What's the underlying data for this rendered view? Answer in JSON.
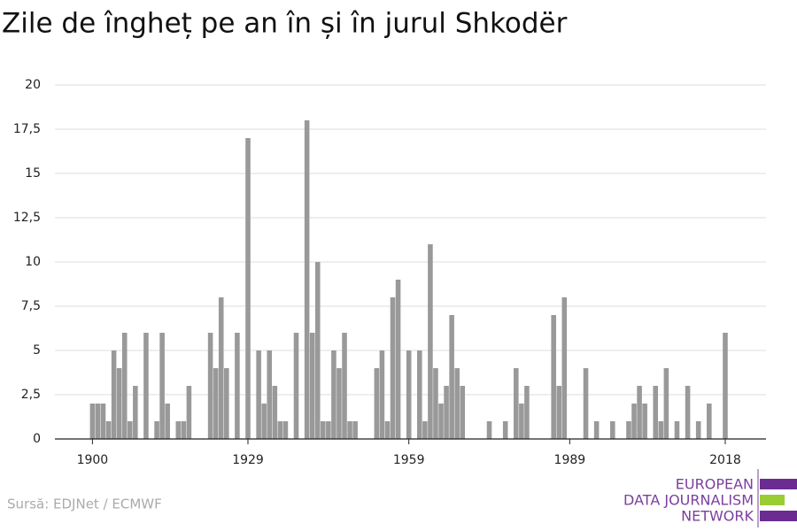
{
  "chart_data": {
    "type": "bar",
    "title": "Zile de îngheț pe an în și în jurul Shkodër",
    "source": "Sursă: EDJNet / ECMWF",
    "logo": [
      "EUROPEAN",
      "DATA JOURNALISM",
      "NETWORK"
    ],
    "color": "#999999",
    "grid": true,
    "x": [
      1900,
      1901,
      1902,
      1903,
      1904,
      1905,
      1906,
      1907,
      1908,
      1909,
      1910,
      1911,
      1912,
      1913,
      1914,
      1915,
      1916,
      1917,
      1918,
      1919,
      1920,
      1921,
      1922,
      1923,
      1924,
      1925,
      1926,
      1927,
      1928,
      1929,
      1930,
      1931,
      1932,
      1933,
      1934,
      1935,
      1936,
      1937,
      1938,
      1939,
      1940,
      1941,
      1942,
      1943,
      1944,
      1945,
      1946,
      1947,
      1948,
      1949,
      1950,
      1951,
      1952,
      1953,
      1954,
      1955,
      1956,
      1957,
      1958,
      1959,
      1960,
      1961,
      1962,
      1963,
      1964,
      1965,
      1966,
      1967,
      1968,
      1969,
      1970,
      1971,
      1972,
      1973,
      1974,
      1975,
      1976,
      1977,
      1978,
      1979,
      1980,
      1981,
      1982,
      1983,
      1984,
      1985,
      1986,
      1987,
      1988,
      1989,
      1990,
      1991,
      1992,
      1993,
      1994,
      1995,
      1996,
      1997,
      1998,
      1999,
      2000,
      2001,
      2002,
      2003,
      2004,
      2005,
      2006,
      2007,
      2008,
      2009,
      2010,
      2011,
      2012,
      2013,
      2014,
      2015,
      2016,
      2017,
      2018
    ],
    "values": [
      2,
      2,
      2,
      1,
      5,
      4,
      6,
      1,
      3,
      0,
      6,
      0,
      1,
      6,
      2,
      0,
      1,
      1,
      3,
      0,
      0,
      0,
      6,
      4,
      8,
      4,
      0,
      6,
      0,
      17,
      0,
      5,
      2,
      5,
      3,
      1,
      1,
      0,
      6,
      0,
      18,
      6,
      10,
      1,
      1,
      5,
      4,
      6,
      1,
      1,
      0,
      0,
      0,
      4,
      5,
      1,
      8,
      9,
      0,
      5,
      0,
      5,
      1,
      11,
      4,
      2,
      3,
      7,
      4,
      3,
      0,
      0,
      0,
      0,
      1,
      0,
      0,
      1,
      0,
      4,
      2,
      3,
      0,
      0,
      0,
      0,
      7,
      3,
      8,
      0,
      0,
      0,
      4,
      0,
      1,
      0,
      0,
      1,
      0,
      0,
      1,
      2,
      3,
      2,
      0,
      3,
      1,
      4,
      0,
      1,
      0,
      3,
      0,
      1,
      0,
      2,
      0,
      0,
      6
    ],
    "xlim": [
      1893,
      2025.6
    ],
    "xticks": [
      1900,
      1929,
      1959,
      1989,
      2018
    ],
    "ylim": [
      0,
      20
    ],
    "yticks": [
      0,
      {
        "value": 2.5,
        "label": "2,5"
      },
      5,
      {
        "value": 7.5,
        "label": "7,5"
      },
      10,
      {
        "value": 12.5,
        "label": "12,5"
      },
      15,
      {
        "value": 17.5,
        "label": "17,5"
      },
      20
    ]
  }
}
